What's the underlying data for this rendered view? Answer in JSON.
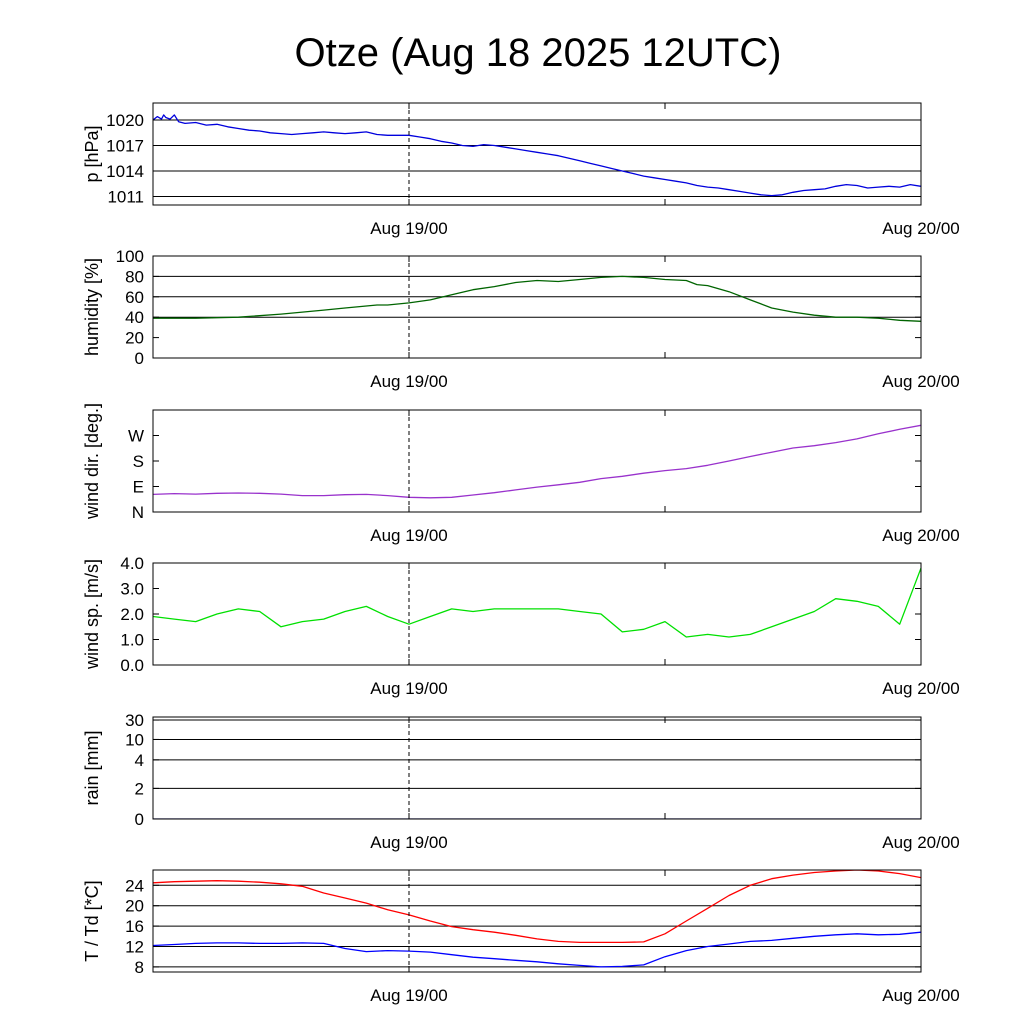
{
  "title": "Otze (Aug 18 2025 12UTC)",
  "chart_data": [
    {
      "type": "line",
      "ylabel": "p [hPa]",
      "ylim": [
        1010,
        1022
      ],
      "yticks": [
        1011,
        1014,
        1017,
        1020
      ],
      "grid_lines": [
        1011,
        1014,
        1017,
        1020
      ],
      "x_ticks": [
        "Aug 19/00",
        "Aug 20/00"
      ],
      "series": [
        {
          "name": "pressure",
          "color": "#0000dd",
          "x": [
            0,
            0.2,
            0.4,
            0.5,
            0.6,
            0.8,
            1,
            1.2,
            1.5,
            2,
            2.5,
            3,
            3.5,
            4,
            4.5,
            5,
            5.5,
            6,
            6.5,
            7,
            7.5,
            8,
            8.5,
            9,
            9.5,
            10,
            10.5,
            11,
            11.5,
            12,
            12.5,
            13,
            13.5,
            14,
            14.5,
            15,
            15.5,
            16,
            16.5,
            17,
            17.5,
            18,
            18.5,
            19,
            19.5,
            20,
            20.5,
            21,
            21.5,
            22,
            22.5,
            23,
            23.5,
            24,
            24.5,
            25,
            25.5,
            26,
            26.5,
            27,
            27.5,
            28,
            28.5,
            29,
            29.5,
            30,
            30.5,
            31,
            31.5,
            32,
            32.5,
            33,
            33.5,
            34,
            34.5,
            35,
            35.5,
            36
          ],
          "values": [
            1020.0,
            1020.4,
            1020.1,
            1020.6,
            1020.3,
            1020.1,
            1020.6,
            1019.8,
            1019.6,
            1019.7,
            1019.4,
            1019.5,
            1019.2,
            1019.0,
            1018.8,
            1018.7,
            1018.5,
            1018.4,
            1018.3,
            1018.4,
            1018.5,
            1018.6,
            1018.5,
            1018.4,
            1018.5,
            1018.6,
            1018.3,
            1018.2,
            1018.2,
            1018.2,
            1018.0,
            1017.8,
            1017.5,
            1017.3,
            1017.0,
            1016.9,
            1017.1,
            1017.0,
            1016.8,
            1016.6,
            1016.4,
            1016.2,
            1016.0,
            1015.8,
            1015.5,
            1015.2,
            1014.9,
            1014.6,
            1014.3,
            1014.0,
            1013.7,
            1013.4,
            1013.2,
            1013.0,
            1012.8,
            1012.6,
            1012.3,
            1012.1,
            1012.0,
            1011.8,
            1011.6,
            1011.4,
            1011.2,
            1011.1,
            1011.2,
            1011.5,
            1011.7,
            1011.8,
            1011.9,
            1012.2,
            1012.4,
            1012.3,
            1012.0,
            1012.1,
            1012.2,
            1012.1,
            1012.4,
            1012.2
          ]
        }
      ]
    },
    {
      "type": "line",
      "ylabel": "humidity [%]",
      "ylim": [
        0,
        100
      ],
      "yticks": [
        0,
        20,
        40,
        60,
        80,
        100
      ],
      "grid_lines": [
        40,
        60,
        80
      ],
      "x_ticks": [
        "Aug 19/00",
        "Aug 20/00"
      ],
      "series": [
        {
          "name": "humidity",
          "color": "#006400",
          "x": [
            0,
            2,
            4,
            6,
            8,
            9,
            10,
            10.5,
            11,
            12,
            13,
            14,
            15,
            16,
            17,
            18,
            19,
            20,
            21,
            22,
            23,
            24,
            25,
            25.5,
            26,
            27,
            28,
            28.5,
            29,
            30,
            31,
            32,
            33,
            34,
            35,
            36
          ],
          "values": [
            39,
            39,
            40,
            43,
            47,
            49,
            51,
            52,
            52,
            54,
            57,
            62,
            67,
            70,
            74,
            76,
            75,
            77,
            79,
            80,
            79,
            77,
            76,
            72,
            71,
            65,
            57,
            53,
            49,
            45,
            42,
            40,
            40,
            39,
            37,
            36
          ]
        }
      ]
    },
    {
      "type": "line",
      "ylabel": "wind dir. [deg.]",
      "ylim": [
        0,
        360
      ],
      "yticks": [
        0,
        90,
        180,
        270
      ],
      "ytick_labels": [
        "N",
        "E",
        "S",
        "W"
      ],
      "grid_lines": [],
      "x_ticks": [
        "Aug 19/00",
        "Aug 20/00"
      ],
      "series": [
        {
          "name": "wind direction",
          "color": "#9932cc",
          "x": [
            0,
            1,
            2,
            3,
            4,
            5,
            6,
            7,
            8,
            9,
            10,
            11,
            12,
            13,
            14,
            15,
            16,
            17,
            18,
            19,
            20,
            21,
            22,
            23,
            24,
            25,
            26,
            27,
            28,
            29,
            30,
            31,
            32,
            33,
            34,
            35,
            36
          ],
          "values": [
            62,
            65,
            63,
            66,
            67,
            66,
            63,
            58,
            58,
            61,
            62,
            58,
            52,
            50,
            52,
            60,
            68,
            78,
            88,
            96,
            105,
            118,
            126,
            137,
            146,
            153,
            165,
            180,
            196,
            211,
            226,
            234,
            245,
            258,
            276,
            292,
            306
          ]
        }
      ]
    },
    {
      "type": "line",
      "ylabel": "wind sp. [m/s]",
      "ylim": [
        0,
        4
      ],
      "yticks": [
        0,
        1,
        2,
        3,
        4
      ],
      "ytick_labels": [
        "0.0",
        "1.0",
        "2.0",
        "3.0",
        "4.0"
      ],
      "grid_lines": [],
      "x_ticks": [
        "Aug 19/00",
        "Aug 20/00"
      ],
      "series": [
        {
          "name": "wind speed",
          "color": "#00e000",
          "x": [
            0,
            1,
            2,
            3,
            4,
            5,
            6,
            7,
            8,
            9,
            10,
            11,
            12,
            13,
            14,
            15,
            16,
            17,
            18,
            19,
            20,
            21,
            22,
            23,
            24,
            25,
            26,
            27,
            28,
            29,
            30,
            31,
            32,
            33,
            34,
            35,
            36
          ],
          "values": [
            1.9,
            1.8,
            1.7,
            2.0,
            2.2,
            2.1,
            1.5,
            1.7,
            1.8,
            2.1,
            2.3,
            1.9,
            1.6,
            1.9,
            2.2,
            2.1,
            2.2,
            2.2,
            2.2,
            2.2,
            2.1,
            2.0,
            1.3,
            1.4,
            1.7,
            1.1,
            1.2,
            1.1,
            1.2,
            1.5,
            1.8,
            2.1,
            2.6,
            2.5,
            2.3,
            1.6,
            3.8
          ]
        }
      ]
    },
    {
      "type": "line",
      "ylabel": "rain [mm]",
      "yticks": [
        0,
        2,
        4,
        10,
        30
      ],
      "grid_lines": [
        2,
        4,
        10,
        30
      ],
      "x_ticks": [
        "Aug 19/00",
        "Aug 20/00"
      ],
      "series": [
        {
          "name": "rain",
          "color": "#000080",
          "x": [
            0,
            36
          ],
          "values": [
            0,
            0
          ]
        }
      ]
    },
    {
      "type": "line",
      "ylabel": "T / Td [*C]",
      "ylim": [
        7,
        27
      ],
      "yticks": [
        8,
        12,
        16,
        20,
        24
      ],
      "grid_lines": [
        8,
        12,
        16,
        20,
        24
      ],
      "x_ticks": [
        "Aug 19/00",
        "Aug 20/00"
      ],
      "series": [
        {
          "name": "T",
          "color": "#ff0000",
          "x": [
            0,
            1,
            2,
            3,
            4,
            5,
            6,
            7,
            8,
            9,
            10,
            11,
            12,
            13,
            14,
            15,
            16,
            17,
            18,
            19,
            20,
            21,
            22,
            23,
            24,
            25,
            26,
            27,
            28,
            29,
            30,
            31,
            32,
            33,
            34,
            35,
            36
          ],
          "values": [
            24.5,
            24.7,
            24.8,
            24.9,
            24.8,
            24.6,
            24.3,
            23.8,
            22.5,
            21.5,
            20.5,
            19.2,
            18.2,
            17.0,
            15.9,
            15.3,
            14.8,
            14.2,
            13.5,
            13.0,
            12.8,
            12.8,
            12.8,
            12.9,
            14.5,
            17.0,
            19.5,
            22.0,
            24.0,
            25.3,
            26.0,
            26.5,
            26.8,
            27.0,
            26.8,
            26.3,
            25.5
          ]
        },
        {
          "name": "Td",
          "color": "#0000ff",
          "x": [
            0,
            1,
            2,
            3,
            4,
            5,
            6,
            7,
            8,
            9,
            10,
            11,
            12,
            13,
            14,
            15,
            16,
            17,
            18,
            19,
            20,
            21,
            22,
            23,
            24,
            25,
            26,
            27,
            28,
            29,
            30,
            31,
            32,
            33,
            34,
            35,
            36
          ],
          "values": [
            12.2,
            12.4,
            12.6,
            12.7,
            12.7,
            12.6,
            12.6,
            12.7,
            12.6,
            11.6,
            11.0,
            11.2,
            11.1,
            10.9,
            10.4,
            9.9,
            9.6,
            9.3,
            9.0,
            8.6,
            8.3,
            8.0,
            8.1,
            8.4,
            10.0,
            11.2,
            12.0,
            12.5,
            13.0,
            13.2,
            13.6,
            14.0,
            14.3,
            14.5,
            14.3,
            14.4,
            14.8
          ]
        }
      ]
    }
  ]
}
